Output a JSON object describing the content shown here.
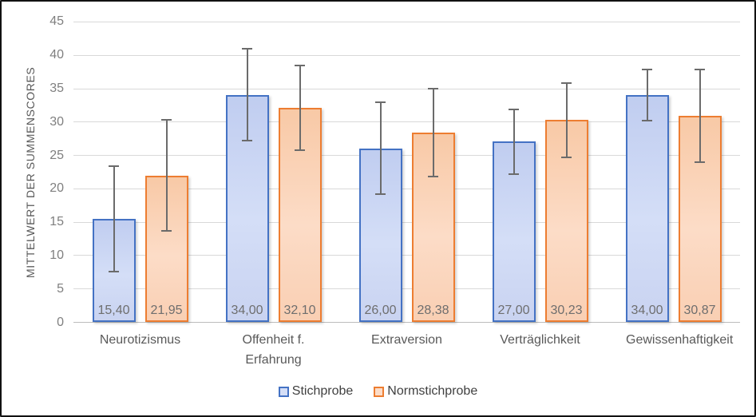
{
  "chart_data": {
    "type": "bar",
    "title": "",
    "ylabel": "MITTELWERT DER SUMMENSCORES",
    "xlabel": "",
    "ylim": [
      0,
      45
    ],
    "yticks": [
      0,
      5,
      10,
      15,
      20,
      25,
      30,
      35,
      40,
      45
    ],
    "grid": true,
    "legend_position": "bottom",
    "categories": [
      "Neurotizismus",
      "Offenheit f. Erfahrung",
      "Extraversion",
      "Verträglichkeit",
      "Gewissenhaftigkeit"
    ],
    "series": [
      {
        "name": "Stichprobe",
        "values": [
          15.4,
          34.0,
          26.0,
          27.0,
          34.0
        ],
        "value_labels": [
          "15,40",
          "34,00",
          "26,00",
          "27,00",
          "34,00"
        ],
        "errors": [
          8.0,
          7.0,
          7.0,
          5.0,
          4.0
        ],
        "border_color": "#4472c4",
        "fill_top": "#c0cdf0",
        "fill_mid": "#d4def7",
        "fill_bottom": "#c9d3f1"
      },
      {
        "name": "Normstichprobe",
        "values": [
          21.95,
          32.1,
          28.38,
          30.23,
          30.87
        ],
        "value_labels": [
          "21,95",
          "32,10",
          "28,38",
          "30,23",
          "30,87"
        ],
        "errors": [
          8.4,
          6.5,
          6.7,
          5.7,
          7.1
        ],
        "border_color": "#ed7d31",
        "fill_top": "#f8c9a6",
        "fill_mid": "#fcdcc7",
        "fill_bottom": "#f9cfb3"
      }
    ],
    "colors": {
      "gridline": "#d9d9d9",
      "axis_line": "#bdbdbd",
      "error_bar": "#6b6b6b",
      "tick_label": "#7f7f7f",
      "category_label": "#595959",
      "value_label": "#6e6e6e",
      "legend_label": "#404040"
    }
  }
}
